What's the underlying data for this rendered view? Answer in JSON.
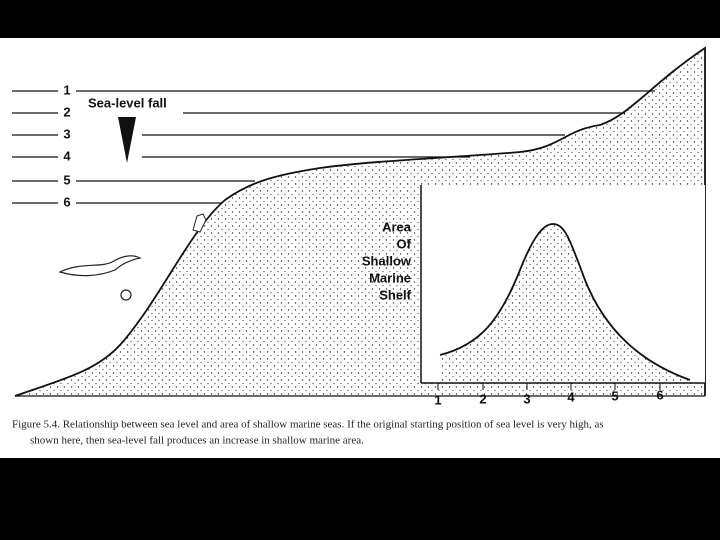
{
  "figure": {
    "sea_levels": [
      "1",
      "2",
      "3",
      "4",
      "5",
      "6"
    ],
    "arrow_label": "Sea-level fall",
    "inset": {
      "y_label_lines": [
        "Area",
        "Of",
        "Shallow",
        "Marine",
        "Shelf"
      ],
      "x_labels": [
        "1",
        "2",
        "3",
        "4",
        "5",
        "6"
      ]
    },
    "caption": {
      "lines": [
        "Figure 5.4.  Relationship between sea level and area of shallow marine seas. If the original starting position of sea level is very high, as",
        "shown here, then sea-level fall produces an increase in shallow marine area."
      ]
    }
  }
}
